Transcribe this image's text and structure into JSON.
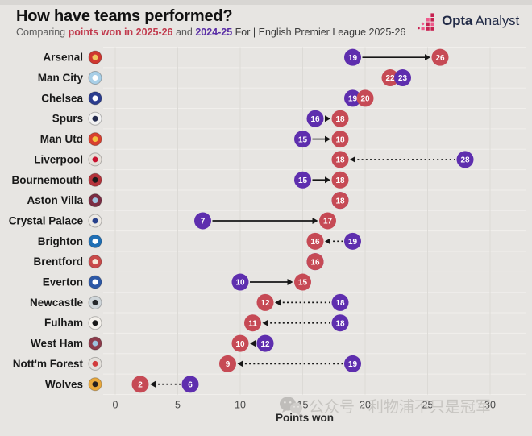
{
  "header": {
    "title": "How have teams performed?",
    "subtitle_parts": [
      {
        "text": "Comparing ",
        "color": "#5c5c5c",
        "bold": false
      },
      {
        "text": "points won in 2025-26",
        "color": "#c13a4d",
        "bold": true
      },
      {
        "text": " and ",
        "color": "#5c5c5c",
        "bold": false
      },
      {
        "text": "2024-25",
        "color": "#5a2ea6",
        "bold": true
      },
      {
        "text": " For | English Premier League 2025-26",
        "color": "#3c3c3c",
        "bold": false
      }
    ]
  },
  "logo": {
    "brand_bold": "Opta",
    "brand_light": "Analyst",
    "icon": "opta-bars-icon",
    "icon_colors": [
      "#c72050",
      "#ef5a8c"
    ]
  },
  "watermark": {
    "icon": "wechat-icon",
    "text": "公众号 · 利物浦不只是冠军",
    "color": "#c7c5c1"
  },
  "chart_data": {
    "type": "dumbbell",
    "title": "How have teams performed?",
    "xlabel": "Points won",
    "xlim": [
      0,
      30
    ],
    "xticks": [
      0,
      5,
      10,
      15,
      20,
      25,
      30
    ],
    "grid": true,
    "series": [
      {
        "name": "2025-26",
        "color": "#c64a55"
      },
      {
        "name": "2024-25",
        "color": "#5e2eae"
      }
    ],
    "arrow_styles": {
      "solid": "points gained vs last season",
      "dotted": "points dropped vs last season",
      "none": "no visible change arrow"
    },
    "teams": [
      {
        "name": "Arsenal",
        "pts_2025_26": 26,
        "pts_2024_25": 19,
        "arrow": "solid",
        "badge": [
          "#cf3730",
          "#f0c75e"
        ]
      },
      {
        "name": "Man City",
        "pts_2025_26": 22,
        "pts_2024_25": 23,
        "arrow": "none",
        "badge": [
          "#a8cfe7",
          "#ffffff"
        ]
      },
      {
        "name": "Chelsea",
        "pts_2025_26": 20,
        "pts_2024_25": 19,
        "arrow": "none",
        "badge": [
          "#2b3d8f",
          "#ffffff"
        ]
      },
      {
        "name": "Spurs",
        "pts_2025_26": 18,
        "pts_2024_25": 16,
        "arrow": "solid",
        "badge": [
          "#f2f2f2",
          "#232a4d"
        ]
      },
      {
        "name": "Man Utd",
        "pts_2025_26": 18,
        "pts_2024_25": 15,
        "arrow": "solid",
        "badge": [
          "#d8402f",
          "#f2c23e"
        ]
      },
      {
        "name": "Liverpool",
        "pts_2025_26": 18,
        "pts_2024_25": 28,
        "arrow": "dotted",
        "badge": [
          "#e6e0da",
          "#c8102e"
        ]
      },
      {
        "name": "Bournemouth",
        "pts_2025_26": 18,
        "pts_2024_25": 15,
        "arrow": "solid",
        "badge": [
          "#b5343c",
          "#1a1a1a"
        ]
      },
      {
        "name": "Aston Villa",
        "pts_2025_26": 18,
        "pts_2024_25": 18,
        "arrow": "none",
        "badge": [
          "#7b2d43",
          "#9fc4e0"
        ]
      },
      {
        "name": "Crystal Palace",
        "pts_2025_26": 17,
        "pts_2024_25": 7,
        "arrow": "solid",
        "badge": [
          "#ece9e4",
          "#27408b"
        ]
      },
      {
        "name": "Brighton",
        "pts_2025_26": 16,
        "pts_2024_25": 19,
        "arrow": "dotted",
        "badge": [
          "#1f6fb5",
          "#ffffff"
        ]
      },
      {
        "name": "Brentford",
        "pts_2025_26": 16,
        "pts_2024_25": 16,
        "arrow": "none",
        "badge": [
          "#c94a4a",
          "#f5e9d9"
        ]
      },
      {
        "name": "Everton",
        "pts_2025_26": 15,
        "pts_2024_25": 10,
        "arrow": "solid",
        "badge": [
          "#2d58a6",
          "#ffffff"
        ]
      },
      {
        "name": "Newcastle",
        "pts_2025_26": 12,
        "pts_2024_25": 18,
        "arrow": "dotted",
        "badge": [
          "#cfd6da",
          "#24272b"
        ]
      },
      {
        "name": "Fulham",
        "pts_2025_26": 11,
        "pts_2024_25": 18,
        "arrow": "dotted",
        "badge": [
          "#f4f1ec",
          "#1a1a1a"
        ]
      },
      {
        "name": "West Ham",
        "pts_2025_26": 10,
        "pts_2024_25": 12,
        "arrow": "dotted",
        "badge": [
          "#8c3a4a",
          "#9cc3de"
        ]
      },
      {
        "name": "Nott'm Forest",
        "pts_2025_26": 9,
        "pts_2024_25": 19,
        "arrow": "dotted",
        "badge": [
          "#e3e0db",
          "#d23b3b"
        ]
      },
      {
        "name": "Wolves",
        "pts_2025_26": 2,
        "pts_2024_25": 6,
        "arrow": "dotted",
        "badge": [
          "#e9a83c",
          "#241f20"
        ]
      }
    ]
  }
}
